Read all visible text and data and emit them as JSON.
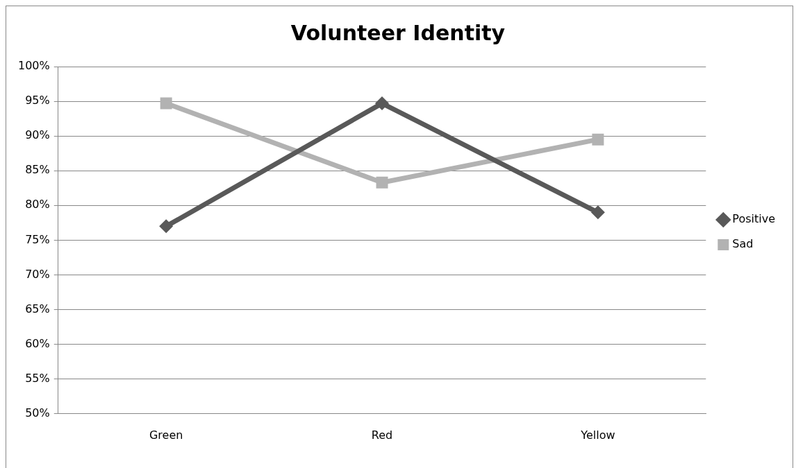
{
  "chart_data": {
    "type": "line",
    "title": "Volunteer Identity",
    "categories": [
      "Green",
      "Red",
      "Yellow"
    ],
    "series": [
      {
        "name": "Positive",
        "color": "#595959",
        "marker": "diamond",
        "values": [
          77,
          94.7,
          79
        ]
      },
      {
        "name": "Sad",
        "color": "#b2b2b2",
        "marker": "square",
        "values": [
          94.7,
          83.3,
          89.5
        ]
      }
    ],
    "ylim": [
      50,
      100
    ],
    "yticks": [
      {
        "value": 50,
        "label": "50%"
      },
      {
        "value": 55,
        "label": "55%"
      },
      {
        "value": 60,
        "label": "60%"
      },
      {
        "value": 65,
        "label": "65%"
      },
      {
        "value": 70,
        "label": "70%"
      },
      {
        "value": 75,
        "label": "75%"
      },
      {
        "value": 80,
        "label": "80%"
      },
      {
        "value": 85,
        "label": "85%"
      },
      {
        "value": 90,
        "label": "90%"
      },
      {
        "value": 95,
        "label": "95%"
      },
      {
        "value": 100,
        "label": "100%"
      }
    ],
    "grid": "y",
    "legend": "right",
    "line_style": "solid"
  }
}
